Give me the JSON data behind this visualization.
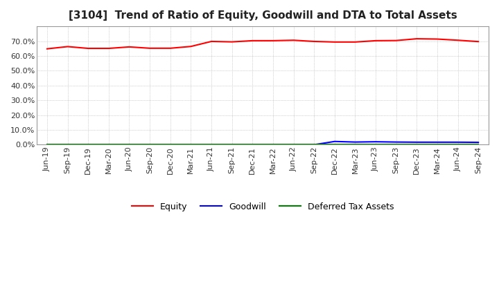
{
  "title": "[3104]  Trend of Ratio of Equity, Goodwill and DTA to Total Assets",
  "x_labels": [
    "Jun-19",
    "Sep-19",
    "Dec-19",
    "Mar-20",
    "Jun-20",
    "Sep-20",
    "Dec-20",
    "Mar-21",
    "Jun-21",
    "Sep-21",
    "Dec-21",
    "Mar-22",
    "Jun-22",
    "Sep-22",
    "Dec-22",
    "Mar-23",
    "Jun-23",
    "Sep-23",
    "Dec-23",
    "Mar-24",
    "Jun-24",
    "Sep-24"
  ],
  "equity": [
    0.648,
    0.663,
    0.651,
    0.651,
    0.661,
    0.652,
    0.652,
    0.664,
    0.698,
    0.695,
    0.703,
    0.703,
    0.706,
    0.698,
    0.694,
    0.694,
    0.703,
    0.704,
    0.716,
    0.714,
    0.706,
    0.697
  ],
  "goodwill": [
    0.0,
    0.0,
    0.0,
    0.0,
    0.0,
    0.0,
    0.0,
    0.0,
    0.0,
    0.0,
    0.0,
    0.0,
    0.0,
    0.0,
    0.022,
    0.018,
    0.02,
    0.018,
    0.017,
    0.017,
    0.017,
    0.016
  ],
  "dta": [
    0.0,
    0.0,
    0.0,
    0.0,
    0.0,
    0.0,
    0.0,
    0.0,
    0.0,
    0.0,
    0.0,
    0.0,
    0.0,
    0.0,
    0.0,
    0.0,
    0.0,
    0.0,
    0.0,
    0.0,
    0.0,
    0.0
  ],
  "equity_color": "#ff0000",
  "goodwill_color": "#0000ff",
  "dta_color": "#008000",
  "bg_color": "#ffffff",
  "plot_bg_color": "#ffffff",
  "grid_color": "#aaaaaa",
  "ylim": [
    0.0,
    0.8
  ],
  "yticks": [
    0.0,
    0.1,
    0.2,
    0.3,
    0.4,
    0.5,
    0.6,
    0.7
  ],
  "legend_labels": [
    "Equity",
    "Goodwill",
    "Deferred Tax Assets"
  ],
  "title_fontsize": 11,
  "tick_fontsize": 8,
  "legend_fontsize": 9
}
